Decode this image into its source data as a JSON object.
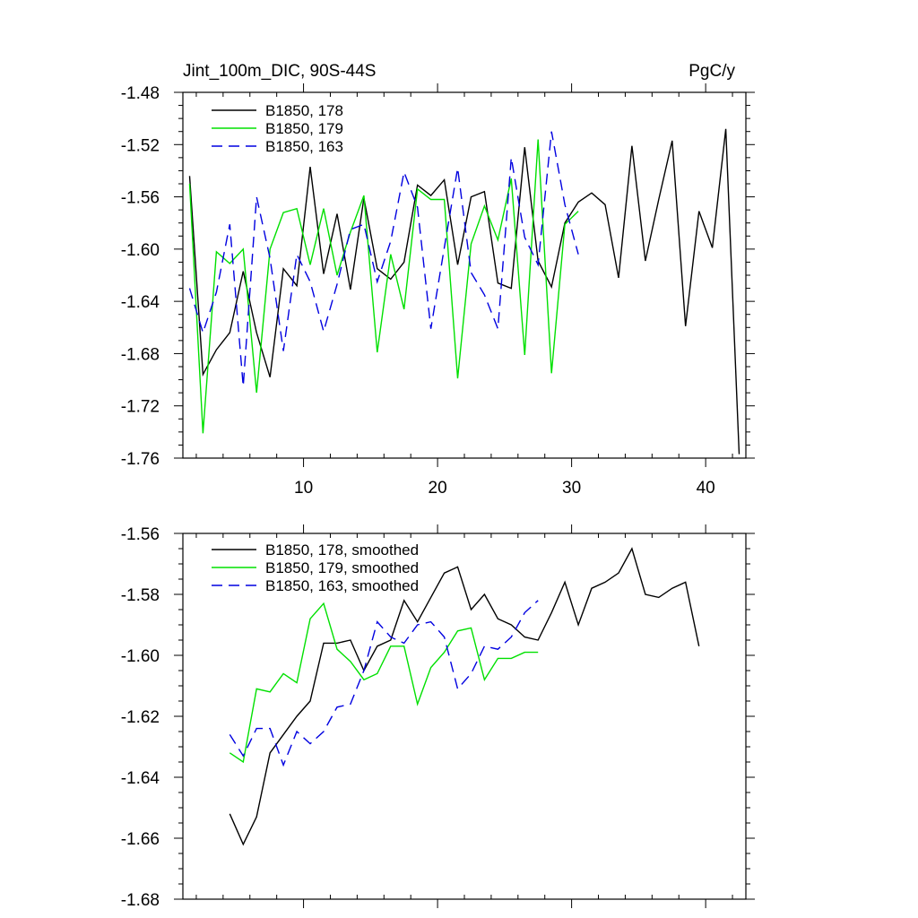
{
  "chart_data": [
    {
      "type": "line",
      "title": "Jint_100m_DIC, 90S-44S",
      "units": "PgC/y",
      "xlim": [
        1,
        43
      ],
      "ylim": [
        -1.76,
        -1.48
      ],
      "xticks": [
        10,
        20,
        30,
        40
      ],
      "xtick_labels": [
        "10",
        "20",
        "30",
        "40"
      ],
      "yticks": [
        -1.48,
        -1.52,
        -1.56,
        -1.6,
        -1.64,
        -1.68,
        -1.72,
        -1.76
      ],
      "ytick_labels": [
        "-1.48",
        "-1.52",
        "-1.56",
        "-1.60",
        "-1.64",
        "-1.68",
        "-1.72",
        "-1.76"
      ],
      "legend_position": "top-left",
      "series": [
        {
          "name": "B1850, 178",
          "color": "#000000",
          "dash": "solid",
          "x": [
            1.5,
            2.5,
            3.5,
            4.5,
            5.5,
            6.5,
            7.5,
            8.5,
            9.5,
            10.5,
            11.5,
            12.5,
            13.5,
            14.5,
            15.5,
            16.5,
            17.5,
            18.5,
            19.5,
            20.5,
            21.5,
            22.5,
            23.5,
            24.5,
            25.5,
            26.5,
            27.5,
            28.5,
            29.5,
            30.5,
            31.5,
            32.5,
            33.5,
            34.5,
            35.5,
            36.5,
            37.5,
            38.5,
            39.5,
            40.5,
            41.5,
            42.5
          ],
          "values": [
            -1.544,
            -1.696,
            -1.677,
            -1.664,
            -1.617,
            -1.664,
            -1.698,
            -1.615,
            -1.628,
            -1.537,
            -1.619,
            -1.573,
            -1.631,
            -1.561,
            -1.615,
            -1.623,
            -1.61,
            -1.551,
            -1.559,
            -1.547,
            -1.612,
            -1.56,
            -1.556,
            -1.626,
            -1.63,
            -1.522,
            -1.609,
            -1.629,
            -1.58,
            -1.564,
            -1.557,
            -1.566,
            -1.622,
            -1.521,
            -1.609,
            -1.562,
            -1.517,
            -1.659,
            -1.571,
            -1.599,
            -1.508,
            -1.757
          ]
        },
        {
          "name": "B1850, 179",
          "color": "#00e000",
          "dash": "solid",
          "x": [
            1.5,
            2.5,
            3.5,
            4.5,
            5.5,
            6.5,
            7.5,
            8.5,
            9.5,
            10.5,
            11.5,
            12.5,
            13.5,
            14.5,
            15.5,
            16.5,
            17.5,
            18.5,
            19.5,
            20.5,
            21.5,
            22.5,
            23.5,
            24.5,
            25.5,
            26.5,
            27.5,
            28.5,
            29.5,
            30.5
          ],
          "values": [
            -1.55,
            -1.741,
            -1.602,
            -1.611,
            -1.6,
            -1.71,
            -1.6,
            -1.572,
            -1.569,
            -1.612,
            -1.569,
            -1.62,
            -1.587,
            -1.559,
            -1.679,
            -1.604,
            -1.646,
            -1.554,
            -1.562,
            -1.562,
            -1.699,
            -1.596,
            -1.567,
            -1.593,
            -1.546,
            -1.681,
            -1.516,
            -1.695,
            -1.581,
            -1.571
          ]
        },
        {
          "name": "B1850, 163",
          "color": "#0000e0",
          "dash": "dashed",
          "x": [
            1.5,
            2.5,
            3.5,
            4.5,
            5.5,
            6.5,
            7.5,
            8.5,
            9.5,
            10.5,
            11.5,
            12.5,
            13.5,
            14.5,
            15.5,
            16.5,
            17.5,
            18.5,
            19.5,
            20.5,
            21.5,
            22.5,
            23.5,
            24.5,
            25.5,
            26.5,
            27.5,
            28.5,
            29.5,
            30.5
          ],
          "values": [
            -1.63,
            -1.664,
            -1.633,
            -1.581,
            -1.705,
            -1.56,
            -1.607,
            -1.678,
            -1.604,
            -1.625,
            -1.663,
            -1.627,
            -1.585,
            -1.581,
            -1.625,
            -1.594,
            -1.541,
            -1.568,
            -1.661,
            -1.599,
            -1.538,
            -1.618,
            -1.635,
            -1.661,
            -1.53,
            -1.591,
            -1.612,
            -1.51,
            -1.566,
            -1.604
          ]
        }
      ]
    },
    {
      "type": "line",
      "title": "",
      "units": "",
      "xlim": [
        1,
        43
      ],
      "ylim": [
        -1.68,
        -1.56
      ],
      "xticks": [
        10,
        20,
        30,
        40
      ],
      "xtick_labels": [],
      "yticks": [
        -1.56,
        -1.58,
        -1.6,
        -1.62,
        -1.64,
        -1.66,
        -1.68
      ],
      "ytick_labels": [
        "-1.56",
        "-1.58",
        "-1.60",
        "-1.62",
        "-1.64",
        "-1.66",
        "-1.68"
      ],
      "legend_position": "top-left",
      "series": [
        {
          "name": "B1850, 178, smoothed",
          "color": "#000000",
          "dash": "solid",
          "x": [
            4.5,
            5.5,
            6.5,
            7.5,
            8.5,
            9.5,
            10.5,
            11.5,
            12.5,
            13.5,
            14.5,
            15.5,
            16.5,
            17.5,
            18.5,
            19.5,
            20.5,
            21.5,
            22.5,
            23.5,
            24.5,
            25.5,
            26.5,
            27.5,
            28.5,
            29.5,
            30.5,
            31.5,
            32.5,
            33.5,
            34.5,
            35.5,
            36.5,
            37.5,
            38.5,
            39.5
          ],
          "values": [
            -1.652,
            -1.662,
            -1.653,
            -1.632,
            -1.626,
            -1.62,
            -1.615,
            -1.596,
            -1.596,
            -1.595,
            -1.605,
            -1.597,
            -1.595,
            -1.582,
            -1.589,
            -1.581,
            -1.573,
            -1.571,
            -1.585,
            -1.58,
            -1.588,
            -1.59,
            -1.594,
            -1.595,
            -1.586,
            -1.576,
            -1.59,
            -1.578,
            -1.576,
            -1.573,
            -1.565,
            -1.58,
            -1.581,
            -1.578,
            -1.576,
            -1.597
          ]
        },
        {
          "name": "B1850, 179, smoothed",
          "color": "#00e000",
          "dash": "solid",
          "x": [
            4.5,
            5.5,
            6.5,
            7.5,
            8.5,
            9.5,
            10.5,
            11.5,
            12.5,
            13.5,
            14.5,
            15.5,
            16.5,
            17.5,
            18.5,
            19.5,
            20.5,
            21.5,
            22.5,
            23.5,
            24.5,
            25.5,
            26.5,
            27.5
          ],
          "values": [
            -1.632,
            -1.635,
            -1.611,
            -1.612,
            -1.606,
            -1.609,
            -1.588,
            -1.583,
            -1.598,
            -1.602,
            -1.608,
            -1.606,
            -1.597,
            -1.597,
            -1.616,
            -1.604,
            -1.599,
            -1.592,
            -1.591,
            -1.608,
            -1.601,
            -1.601,
            -1.599,
            -1.599
          ]
        },
        {
          "name": "B1850, 163, smoothed",
          "color": "#0000e0",
          "dash": "dashed",
          "x": [
            4.5,
            5.5,
            6.5,
            7.5,
            8.5,
            9.5,
            10.5,
            11.5,
            12.5,
            13.5,
            14.5,
            15.5,
            16.5,
            17.5,
            18.5,
            19.5,
            20.5,
            21.5,
            22.5,
            23.5,
            24.5,
            25.5,
            26.5,
            27.5
          ],
          "values": [
            -1.626,
            -1.633,
            -1.624,
            -1.624,
            -1.636,
            -1.625,
            -1.629,
            -1.625,
            -1.617,
            -1.616,
            -1.605,
            -1.589,
            -1.594,
            -1.596,
            -1.59,
            -1.589,
            -1.594,
            -1.611,
            -1.606,
            -1.597,
            -1.598,
            -1.594,
            -1.586,
            -1.582
          ]
        }
      ]
    }
  ]
}
